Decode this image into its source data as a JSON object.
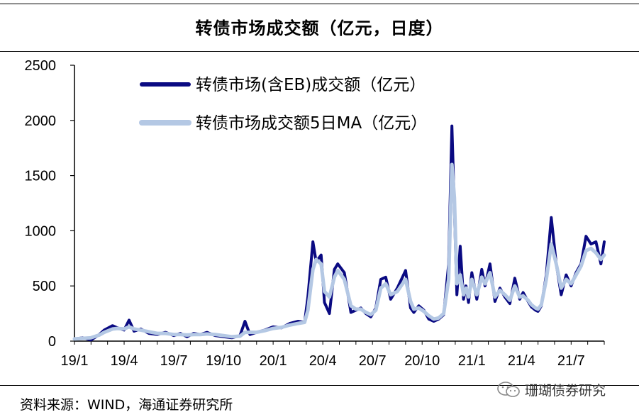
{
  "title": "转债市场成交额（亿元，日度）",
  "source": "资料来源：WIND，海通证券研究所",
  "watermark": "珊瑚债券研究",
  "colors": {
    "series1": "#0a0a82",
    "series2": "#b4c8e4"
  },
  "chart_data": {
    "type": "line",
    "title": "转债市场成交额（亿元，日度）",
    "xlabel": "",
    "ylabel": "",
    "ylim": [
      0,
      2500
    ],
    "yticks": [
      0,
      500,
      1000,
      1500,
      2000,
      2500
    ],
    "xlim": [
      0,
      32
    ],
    "xtick_values": [
      0,
      3,
      6,
      9,
      12,
      15,
      18,
      21,
      24,
      27,
      30
    ],
    "xtick_labels": [
      "19/1",
      "19/4",
      "19/7",
      "19/10",
      "20/1",
      "20/4",
      "20/7",
      "20/10",
      "21/1",
      "21/4",
      "21/7"
    ],
    "grid": false,
    "legend": "top-left",
    "series": [
      {
        "name": "转债市场(含EB)成交额（亿元）",
        "x": [
          0,
          0.5,
          1,
          1.5,
          1.8,
          2.3,
          2.6,
          3,
          3.3,
          3.6,
          4,
          4.5,
          5,
          5.5,
          6,
          6.4,
          6.8,
          7.2,
          7.6,
          8,
          8.5,
          9,
          9.5,
          10,
          10.3,
          10.6,
          11,
          11.5,
          12,
          12.5,
          13,
          13.5,
          13.9,
          14.1,
          14.4,
          14.6,
          14.9,
          15.1,
          15.4,
          15.7,
          15.9,
          16.3,
          16.7,
          17,
          17.3,
          17.6,
          17.9,
          18.2,
          18.5,
          18.8,
          19.1,
          19.5,
          20,
          20.3,
          20.5,
          20.8,
          21.1,
          21.4,
          21.7,
          22,
          22.3,
          22.6,
          22.8,
          22.95,
          23.1,
          23.3,
          23.5,
          23.65,
          23.8,
          24,
          24.3,
          24.6,
          24.8,
          25.1,
          25.4,
          25.7,
          26,
          26.3,
          26.6,
          26.9,
          27.1,
          27.4,
          27.6,
          27.85,
          28,
          28.2,
          28.5,
          28.8,
          29.1,
          29.4,
          29.7,
          30,
          30.3,
          30.6,
          30.9,
          31.2,
          31.5,
          31.8,
          32
        ],
        "values": [
          20,
          30,
          10,
          60,
          100,
          140,
          120,
          100,
          190,
          90,
          110,
          70,
          60,
          80,
          50,
          70,
          40,
          70,
          60,
          80,
          50,
          40,
          30,
          50,
          180,
          60,
          80,
          100,
          130,
          120,
          160,
          180,
          170,
          400,
          900,
          720,
          780,
          350,
          250,
          650,
          700,
          620,
          260,
          280,
          300,
          250,
          220,
          300,
          560,
          580,
          380,
          480,
          640,
          300,
          260,
          320,
          280,
          200,
          180,
          200,
          240,
          700,
          1950,
          1200,
          420,
          860,
          380,
          500,
          350,
          620,
          380,
          650,
          500,
          700,
          360,
          480,
          400,
          340,
          570,
          380,
          440,
          360,
          310,
          280,
          270,
          320,
          600,
          1120,
          700,
          420,
          600,
          500,
          620,
          700,
          950,
          880,
          900,
          700,
          900
        ]
      },
      {
        "name": "转债市场成交额5日MA（亿元）",
        "x": [
          0,
          0.5,
          1,
          1.5,
          1.8,
          2.3,
          2.6,
          3,
          3.3,
          3.6,
          4,
          4.5,
          5,
          5.5,
          6,
          6.4,
          6.8,
          7.2,
          7.6,
          8,
          8.5,
          9,
          9.5,
          10,
          10.3,
          10.6,
          11,
          11.5,
          12,
          12.5,
          13,
          13.5,
          13.9,
          14.1,
          14.4,
          14.6,
          14.9,
          15.1,
          15.4,
          15.7,
          15.9,
          16.3,
          16.7,
          17,
          17.3,
          17.6,
          17.9,
          18.2,
          18.5,
          18.8,
          19.1,
          19.5,
          20,
          20.3,
          20.5,
          20.8,
          21.1,
          21.4,
          21.7,
          22,
          22.3,
          22.6,
          22.8,
          22.95,
          23.1,
          23.3,
          23.5,
          23.65,
          23.8,
          24,
          24.3,
          24.6,
          24.8,
          25.1,
          25.4,
          25.7,
          26,
          26.3,
          26.6,
          26.9,
          27.1,
          27.4,
          27.6,
          27.85,
          28,
          28.2,
          28.5,
          28.8,
          29.1,
          29.4,
          29.7,
          30,
          30.3,
          30.6,
          30.9,
          31.2,
          31.5,
          31.8,
          32
        ],
        "values": [
          20,
          25,
          30,
          55,
          80,
          110,
          115,
          110,
          130,
          110,
          100,
          85,
          70,
          70,
          60,
          60,
          55,
          60,
          60,
          65,
          60,
          50,
          40,
          45,
          80,
          80,
          80,
          95,
          115,
          125,
          145,
          160,
          170,
          280,
          650,
          740,
          700,
          450,
          400,
          580,
          640,
          560,
          320,
          290,
          290,
          260,
          240,
          280,
          480,
          520,
          420,
          450,
          560,
          360,
          290,
          300,
          270,
          230,
          200,
          210,
          250,
          560,
          1600,
          1300,
          520,
          600,
          420,
          480,
          400,
          560,
          420,
          580,
          520,
          620,
          400,
          460,
          420,
          370,
          500,
          400,
          410,
          370,
          330,
          300,
          290,
          330,
          560,
          880,
          700,
          480,
          560,
          520,
          600,
          680,
          820,
          840,
          800,
          740,
          780
        ]
      }
    ]
  }
}
